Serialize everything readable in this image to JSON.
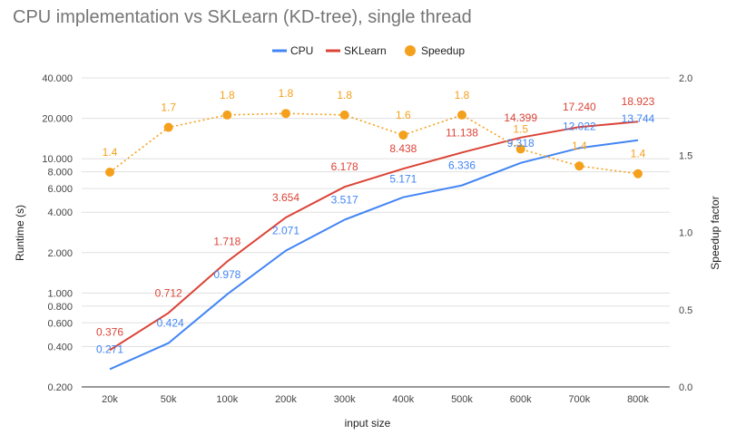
{
  "chart_data": {
    "type": "line",
    "title": "CPU implementation vs SKLearn (KD-tree), single thread",
    "xlabel": "input size",
    "ylabel": "Runtime (s)",
    "y2label": "Speedup factor",
    "categories": [
      "20k",
      "50k",
      "100k",
      "200k",
      "300k",
      "400k",
      "500k",
      "600k",
      "700k",
      "800k"
    ],
    "y_scale": "log",
    "ylim": [
      0.2,
      40
    ],
    "y_ticks": [
      0.2,
      0.4,
      0.6,
      0.8,
      1,
      2,
      4,
      6,
      8,
      10,
      20,
      40
    ],
    "y_tick_labels": [
      "0.200",
      "0.400",
      "0.600",
      "0.800",
      "1.000",
      "2.000",
      "4.000",
      "6.000",
      "8.000",
      "10.000",
      "20.000",
      "40.000"
    ],
    "y2lim": [
      0,
      2
    ],
    "y2_ticks": [
      0,
      0.5,
      1,
      1.5,
      2
    ],
    "y2_tick_labels": [
      "0.0",
      "0.5",
      "1.0",
      "1.5",
      "2.0"
    ],
    "legend_position": "top",
    "grid": "horizontal",
    "series": [
      {
        "name": "CPU",
        "axis": "left",
        "style": "line",
        "color": "#4285f4",
        "values": [
          0.271,
          0.424,
          0.978,
          2.071,
          3.517,
          5.171,
          6.336,
          9.318,
          12.022,
          13.744
        ],
        "labels": [
          "0.271",
          "0.424",
          "0.978",
          "2.071",
          "3.517",
          "5.171",
          "6.336",
          "9.318",
          "12.022",
          "13.744"
        ]
      },
      {
        "name": "SKLearn",
        "axis": "left",
        "style": "line",
        "color": "#db4437",
        "values": [
          0.376,
          0.712,
          1.718,
          3.654,
          6.178,
          8.438,
          11.138,
          14.399,
          17.24,
          18.923
        ],
        "labels": [
          "0.376",
          "0.712",
          "1.718",
          "3.654",
          "6.178",
          "8.438",
          "11.138",
          "14.399",
          "17.240",
          "18.923"
        ]
      },
      {
        "name": "Speedup",
        "axis": "right",
        "style": "dotted-line-markers",
        "color": "#f4a01c",
        "values": [
          1.39,
          1.68,
          1.76,
          1.77,
          1.76,
          1.63,
          1.76,
          1.54,
          1.43,
          1.38
        ],
        "labels": [
          "1.4",
          "1.7",
          "1.8",
          "1.8",
          "1.8",
          "1.6",
          "1.8",
          "1.5",
          "1.4",
          "1.4"
        ]
      }
    ]
  }
}
